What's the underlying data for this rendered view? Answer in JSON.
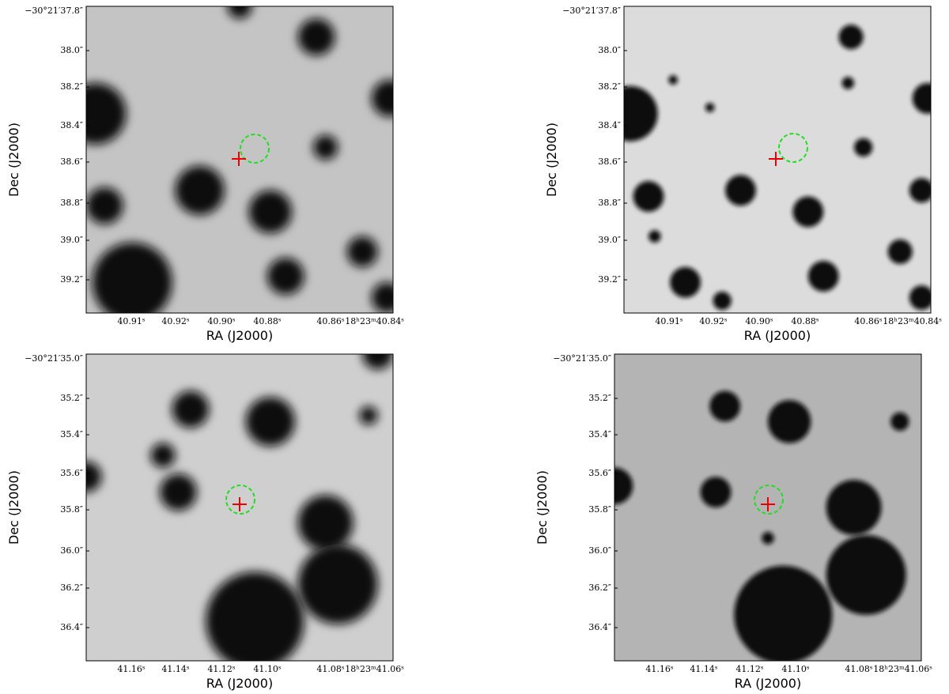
{
  "panels": [
    {
      "xlabel": "RA (J2000)",
      "ylabel": "Dec (J2000)",
      "xticks": [
        "40.91ˢ",
        "40.92ˢ",
        "40.90ˢ",
        "40.88ˢ",
        "40.86ˢ",
        "18ʰ23ᵐ40.84ˢ"
      ],
      "yticks": [
        "−30°21′37.8″",
        "38.0″",
        "38.2″",
        "38.4″",
        "38.6″",
        "38.8″",
        "39.0″",
        "39.2″"
      ]
    },
    {
      "xlabel": "RA (J2000)",
      "ylabel": "Dec (J2000)",
      "xticks": [
        "40.91ˢ",
        "40.92ˢ",
        "40.90ˢ",
        "40.88ˢ",
        "40.86ˢ",
        "18ʰ23ᵐ40.84ˢ"
      ],
      "yticks": [
        "−30°21′37.8″",
        "38.0″",
        "38.2″",
        "38.4″",
        "38.6″",
        "38.8″",
        "39.0″",
        "39.2″"
      ]
    },
    {
      "xlabel": "RA (J2000)",
      "ylabel": "Dec (J2000)",
      "xticks": [
        "41.16ˢ",
        "41.14ˢ",
        "41.12ˢ",
        "41.10ˢ",
        "41.08ˢ",
        "18ʰ23ᵐ41.06ˢ"
      ],
      "yticks": [
        "−30°21′35.0″",
        "35.2″",
        "35.4″",
        "35.6″",
        "35.8″",
        "36.0″",
        "36.2″",
        "36.4″"
      ]
    },
    {
      "xlabel": "RA (J2000)",
      "ylabel": "Dec (J2000)",
      "xticks": [
        "41.16ˢ",
        "41.14ˢ",
        "41.12ˢ",
        "41.10ˢ",
        "41.08ˢ",
        "18ʰ23ᵐ41.06ˢ"
      ],
      "yticks": [
        "−30°21′35.0″",
        "35.2″",
        "35.4″",
        "35.6″",
        "35.8″",
        "36.0″",
        "36.2″",
        "36.4″"
      ]
    }
  ]
}
